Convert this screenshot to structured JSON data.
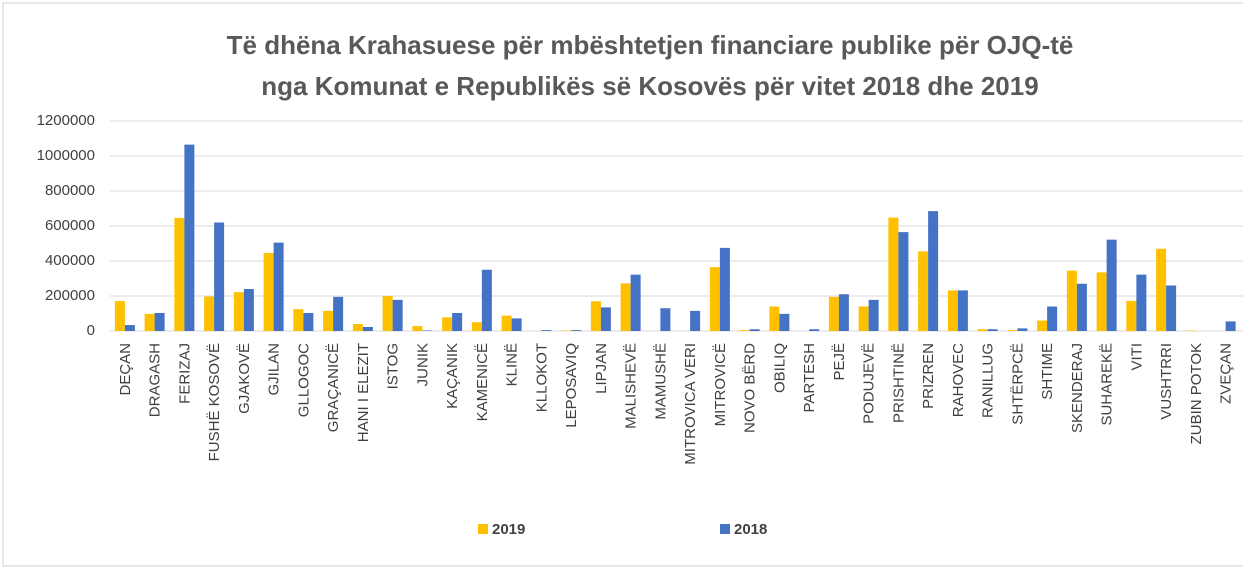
{
  "chart_data": {
    "type": "bar",
    "title": [
      "Të dhëna Krahasuese për mbështetjen financiare publike për OJQ-të",
      "nga Komunat e Republikës së Kosovës për vitet 2018 dhe 2019"
    ],
    "categories": [
      "DEÇAN",
      "DRAGASH",
      "FERIZAJ",
      "FUSHË KOSOVË",
      "GJAKOVË",
      "GJILAN",
      "GLLOGOC",
      "GRAÇANICË",
      "HANI I ELEZIT",
      "ISTOG",
      "JUNIK",
      "KAÇANIK",
      "KAMENICË",
      "KLINË",
      "KLLOKOT",
      "LEPOSAVIQ",
      "LIPJAN",
      "MALISHEVË",
      "MAMUSHË",
      "MITROVICA VERI",
      "MITROVICË",
      "NOVO BËRD",
      "OBILIQ",
      "PARTESH",
      "PEJË",
      "PODUJEVË",
      "PRISHTINË",
      "PRIZREN",
      "RAHOVEC",
      "RANILLUG",
      "SHTËRPCË",
      "SHTIME",
      "SKENDERAJ",
      "SUHAREKË",
      "VITI",
      "VUSHTRRI",
      "ZUBIN POTOK",
      "ZVEÇAN"
    ],
    "series": [
      {
        "name": "2019",
        "color": "#ffc000",
        "values": [
          171000,
          98000,
          646000,
          197000,
          222000,
          446000,
          125000,
          115000,
          40000,
          200000,
          28000,
          78000,
          50000,
          88000,
          0,
          3000,
          170000,
          272000,
          0,
          0,
          365000,
          5000,
          140000,
          0,
          195000,
          140000,
          648000,
          455000,
          232000,
          10000,
          5000,
          60000,
          345000,
          335000,
          172000,
          470000,
          3000,
          0
        ]
      },
      {
        "name": "2018",
        "color": "#4472c4",
        "values": [
          34000,
          103000,
          1065000,
          620000,
          240000,
          505000,
          103000,
          195000,
          23000,
          178000,
          3000,
          103000,
          350000,
          72000,
          5000,
          5000,
          135000,
          322000,
          130000,
          115000,
          475000,
          10000,
          98000,
          10000,
          210000,
          178000,
          565000,
          685000,
          232000,
          10000,
          15000,
          140000,
          270000,
          522000,
          322000,
          260000,
          0,
          55000
        ]
      }
    ],
    "ylim": [
      0,
      1200000
    ],
    "yticks": [
      0,
      200000,
      400000,
      600000,
      800000,
      1000000,
      1200000
    ],
    "grid": true,
    "legend": "bottom"
  }
}
